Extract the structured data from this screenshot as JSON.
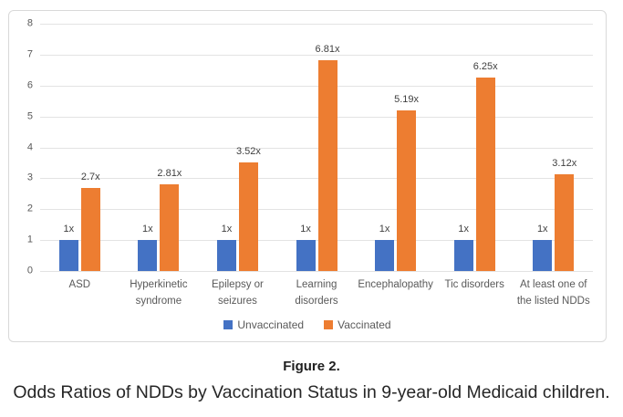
{
  "figure": {
    "label": "Figure 2.",
    "caption": "Odds Ratios of NDDs by Vaccination Status in 9-year-old Medicaid children."
  },
  "chart_data": {
    "type": "bar",
    "title": "",
    "categories": [
      "ASD",
      "Hyperkinetic syndrome",
      "Epilepsy or seizures",
      "Learning disorders",
      "Encephalopathy",
      "Tic disorders",
      "At least one of the listed NDDs"
    ],
    "series": [
      {
        "name": "Unvaccinated",
        "color": "#4472C4",
        "values": [
          1,
          1,
          1,
          1,
          1,
          1,
          1
        ],
        "data_labels": [
          "1x",
          "1x",
          "1x",
          "1x",
          "1x",
          "1x",
          "1x"
        ]
      },
      {
        "name": "Vaccinated",
        "color": "#ED7D31",
        "values": [
          2.7,
          2.81,
          3.52,
          6.81,
          5.19,
          6.25,
          3.12
        ],
        "data_labels": [
          "2.7x",
          "2.81x",
          "3.52x",
          "6.81x",
          "5.19x",
          "6.25x",
          "3.12x"
        ]
      }
    ],
    "xlabel": "",
    "ylabel": "",
    "ylim": [
      0,
      8
    ],
    "y_ticks": [
      0,
      1,
      2,
      3,
      4,
      5,
      6,
      7,
      8
    ],
    "grid": true,
    "legend_position": "bottom-center",
    "gridline_color": "#e3e3e3",
    "axis_text_color": "#595959",
    "data_label_color": "#404040",
    "chart_border_color": "#d9d9d9"
  }
}
